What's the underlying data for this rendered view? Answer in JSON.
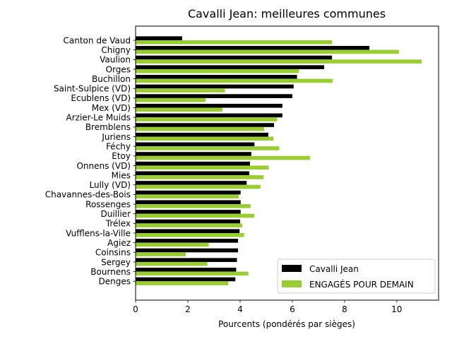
{
  "chart_data": {
    "type": "bar",
    "orientation": "horizontal",
    "title": "Cavalli Jean: meilleures communes",
    "xlabel": "Pourcents (pondérés par sièges)",
    "ylabel": "",
    "xlim": [
      0,
      11.6
    ],
    "xticks": [
      "0",
      "2",
      "4",
      "6",
      "8",
      "10"
    ],
    "grid": false,
    "legend_position": "bottom-right",
    "categories": [
      "Canton de Vaud",
      "Chigny",
      "Vaulion",
      "Orges",
      "Buchillon",
      "Saint-Sulpice (VD)",
      "Ecublens (VD)",
      "Mex (VD)",
      "Arzier-Le Muids",
      "Bremblens",
      "Juriens",
      "Féchy",
      "Etoy",
      "Onnens (VD)",
      "Mies",
      "Lully (VD)",
      "Chavannes-des-Bois",
      "Rossenges",
      "Duillier",
      "Trélex",
      "Vufflens-la-Ville",
      "Agiez",
      "Coinsins",
      "Sergey",
      "Bournens",
      "Denges"
    ],
    "series": [
      {
        "name": "Cavalli Jean",
        "color": "#000000",
        "values": [
          1.78,
          8.95,
          7.52,
          7.22,
          6.18,
          6.05,
          6.0,
          5.62,
          5.62,
          5.3,
          5.08,
          4.55,
          4.43,
          4.38,
          4.35,
          4.25,
          4.02,
          4.02,
          4.02,
          4.0,
          3.98,
          3.92,
          3.92,
          3.88,
          3.85,
          3.82
        ]
      },
      {
        "name": "ENGAGÉS POUR DEMAIN",
        "color": "#9acd32",
        "values": [
          7.52,
          10.08,
          10.95,
          6.25,
          7.55,
          3.42,
          2.68,
          3.32,
          5.42,
          4.92,
          5.28,
          5.5,
          6.68,
          5.1,
          4.9,
          4.78,
          3.95,
          4.4,
          4.55,
          4.08,
          4.15,
          2.8,
          1.92,
          2.75,
          4.32,
          3.55
        ]
      }
    ]
  }
}
